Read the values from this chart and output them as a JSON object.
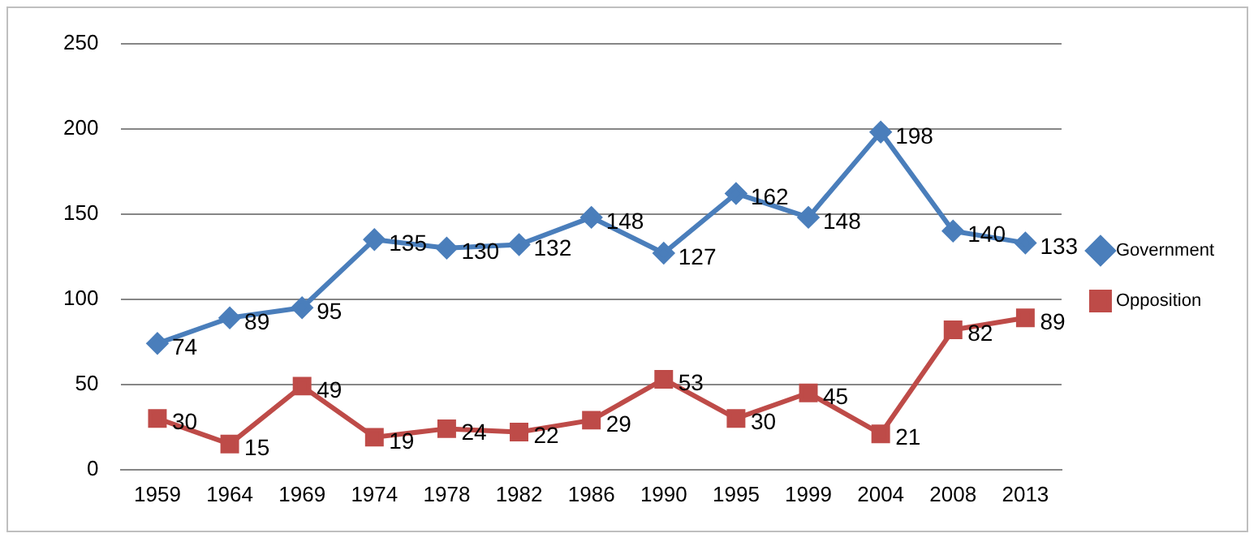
{
  "chart_data": {
    "type": "line",
    "categories": [
      "1959",
      "1964",
      "1969",
      "1974",
      "1978",
      "1982",
      "1986",
      "1990",
      "1995",
      "1999",
      "2004",
      "2008",
      "2013"
    ],
    "series": [
      {
        "name": "Government",
        "color": "#4a7ebb",
        "marker": "diamond",
        "values": [
          74,
          89,
          95,
          135,
          130,
          132,
          148,
          127,
          162,
          148,
          198,
          140,
          133
        ]
      },
      {
        "name": "Opposition",
        "color": "#be4b48",
        "marker": "square",
        "values": [
          30,
          15,
          49,
          19,
          24,
          22,
          29,
          53,
          30,
          45,
          21,
          82,
          89
        ]
      }
    ],
    "ylim": [
      0,
      250
    ],
    "yticks": [
      0,
      50,
      100,
      150,
      200,
      250
    ],
    "grid": "y",
    "legend": "right",
    "data_labels": true
  }
}
